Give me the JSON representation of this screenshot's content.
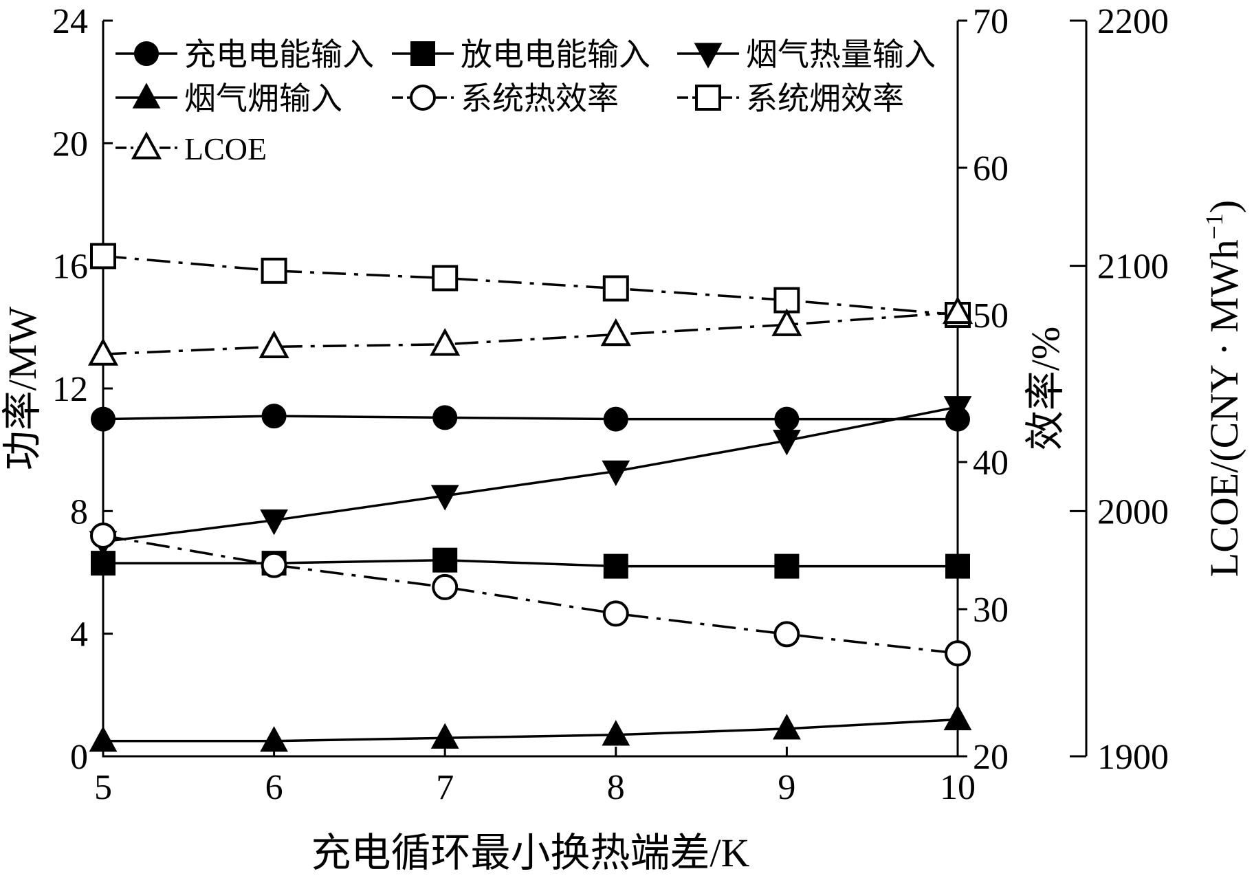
{
  "chart_data": {
    "type": "line",
    "xlabel": "充电循环最小换热端差/K",
    "ylabel_left": "功率/MW",
    "ylabel_right1": "效率/%",
    "ylabel_right2_base": "LCOE/(CNY · MWh",
    "ylabel_right2_sup": "−1",
    "ylabel_right2_end": ")",
    "x": [
      5,
      6,
      7,
      8,
      9,
      10
    ],
    "x_ticks": [
      "5",
      "6",
      "7",
      "8",
      "9",
      "10"
    ],
    "xlim": [
      5,
      10
    ],
    "ylim_left": [
      0,
      24
    ],
    "y_ticks_left": [
      "0",
      "4",
      "8",
      "12",
      "16",
      "20",
      "24"
    ],
    "ylim_right1": [
      20,
      70
    ],
    "y_ticks_right1": [
      "20",
      "30",
      "40",
      "50",
      "60",
      "70"
    ],
    "ylim_right2": [
      1900,
      2200
    ],
    "y_ticks_right2": [
      "1900",
      "2000",
      "2100",
      "2200"
    ],
    "grid": false,
    "legend_position": "top",
    "series": [
      {
        "name": "充电电能输入",
        "axis": "left",
        "marker": "circle-filled",
        "dash": "solid",
        "values": [
          11.0,
          11.1,
          11.05,
          11.0,
          11.0,
          11.0
        ]
      },
      {
        "name": "放电电能输入",
        "axis": "left",
        "marker": "square-filled",
        "dash": "solid",
        "values": [
          6.3,
          6.3,
          6.4,
          6.2,
          6.2,
          6.2
        ]
      },
      {
        "name": "烟气热量输入",
        "axis": "left",
        "marker": "tri-down-filled",
        "dash": "solid",
        "values": [
          7.0,
          7.7,
          8.5,
          9.3,
          10.3,
          11.4
        ]
      },
      {
        "name": "烟气㶲输入",
        "axis": "left",
        "marker": "tri-up-filled",
        "dash": "solid",
        "values": [
          0.5,
          0.5,
          0.6,
          0.7,
          0.9,
          1.2
        ]
      },
      {
        "name": "系统热效率",
        "axis": "right1",
        "marker": "circle-open",
        "dash": "dashdot",
        "values": [
          35.0,
          33.0,
          31.5,
          29.7,
          28.3,
          27.0
        ]
      },
      {
        "name": "系统㶲效率",
        "axis": "right1",
        "marker": "square-open",
        "dash": "dashdot",
        "values": [
          54.0,
          53.0,
          52.5,
          51.8,
          51.0,
          50.0
        ]
      },
      {
        "name": "LCOE",
        "axis": "right2",
        "marker": "tri-up-open",
        "dash": "dashdot",
        "values": [
          2064,
          2067,
          2068,
          2072,
          2076,
          2081
        ]
      }
    ]
  }
}
